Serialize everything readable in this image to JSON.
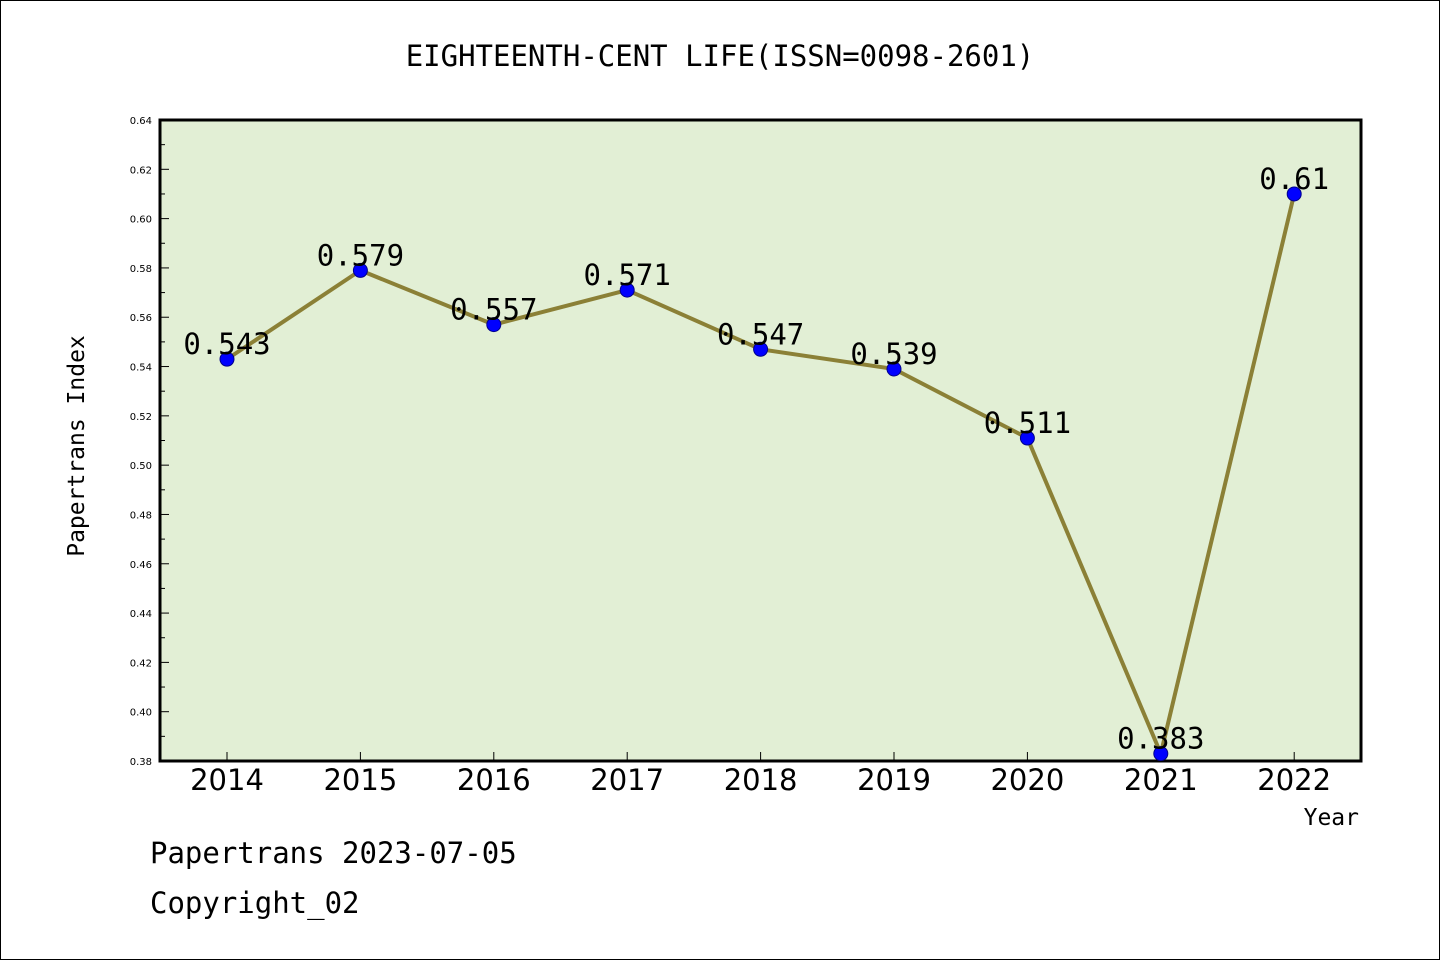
{
  "chart_data": {
    "type": "line",
    "title": "EIGHTEENTH-CENT LIFE(ISSN=0098-2601)",
    "xlabel": "Year",
    "ylabel": "Papertrans Index",
    "categories": [
      "2014",
      "2015",
      "2016",
      "2017",
      "2018",
      "2019",
      "2020",
      "2021",
      "2022"
    ],
    "series": [
      {
        "values": [
          0.543,
          0.579,
          0.557,
          0.571,
          0.547,
          0.539,
          0.511,
          0.383,
          0.61
        ],
        "labels": [
          "0.543",
          "0.579",
          "0.557",
          "0.571",
          "0.547",
          "0.539",
          "0.511",
          "0.383",
          "0.61"
        ]
      }
    ],
    "ylim": [
      0.38,
      0.64
    ],
    "yticks": [
      "0.38",
      "0.40",
      "0.42",
      "0.44",
      "0.46",
      "0.48",
      "0.50",
      "0.52",
      "0.54",
      "0.56",
      "0.58",
      "0.60",
      "0.62",
      "0.64"
    ],
    "grid": false,
    "colors": {
      "plot_background": "#e2efd5",
      "line": "#8b8036",
      "marker": "#0000ff"
    }
  },
  "footer": {
    "line1": "Papertrans 2023-07-05",
    "line2": "Copyright_02"
  }
}
